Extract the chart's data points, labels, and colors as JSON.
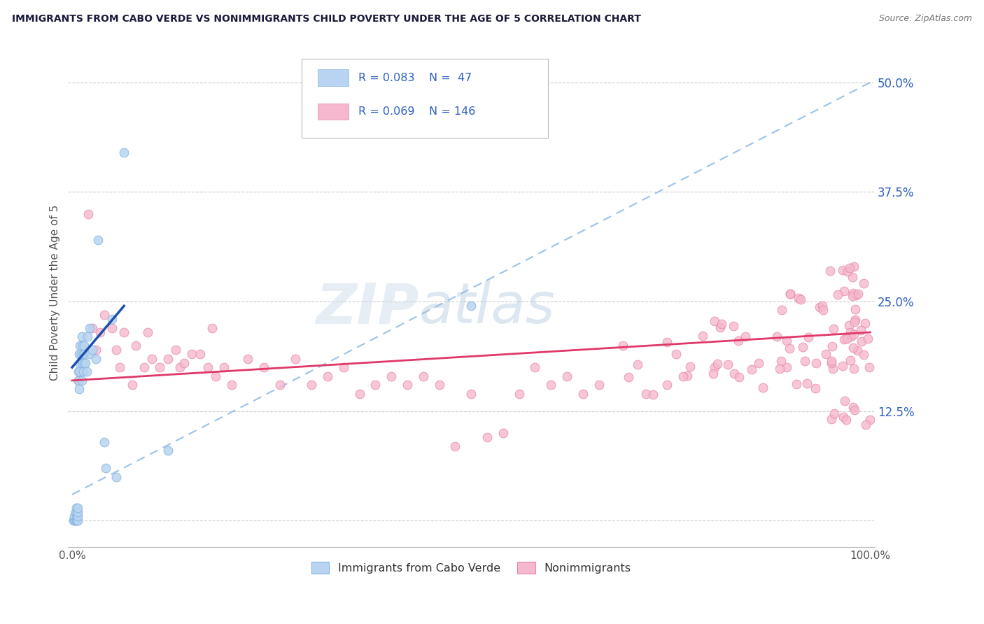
{
  "title": "IMMIGRANTS FROM CABO VERDE VS NONIMMIGRANTS CHILD POVERTY UNDER THE AGE OF 5 CORRELATION CHART",
  "source": "Source: ZipAtlas.com",
  "ylabel": "Child Poverty Under the Age of 5",
  "ytick_labels": [
    "",
    "12.5%",
    "25.0%",
    "37.5%",
    "50.0%"
  ],
  "ytick_values": [
    0.0,
    0.125,
    0.25,
    0.375,
    0.5
  ],
  "xlim": [
    -0.005,
    1.005
  ],
  "ylim": [
    -0.03,
    0.55
  ],
  "blue_R": 0.083,
  "blue_N": 47,
  "pink_R": 0.069,
  "pink_N": 146,
  "blue_fill": "#b8d4f0",
  "blue_edge": "#85b5e0",
  "pink_fill": "#f5b8ce",
  "pink_edge": "#e888a8",
  "blue_line": "#1a50b0",
  "pink_line": "#e03868",
  "dash_line": "#90bce8",
  "marker_size": 85,
  "legend_label_blue": "Immigrants from Cabo Verde",
  "legend_label_pink": "Nonimmigrants",
  "watermark_zip": "ZIP",
  "watermark_atlas": "atlas",
  "grid_color": "#cccccc",
  "title_color": "#1a1a3a",
  "axis_label_color": "#555555",
  "right_tick_color": "#3060c0",
  "blue_scatter_x": [
    0.002,
    0.003,
    0.003,
    0.004,
    0.004,
    0.005,
    0.005,
    0.005,
    0.006,
    0.006,
    0.006,
    0.007,
    0.007,
    0.007,
    0.007,
    0.008,
    0.008,
    0.009,
    0.009,
    0.01,
    0.01,
    0.01,
    0.011,
    0.012,
    0.012,
    0.013,
    0.013,
    0.014,
    0.014,
    0.015,
    0.015,
    0.016,
    0.017,
    0.018,
    0.019,
    0.022,
    0.023,
    0.025,
    0.03,
    0.032,
    0.04,
    0.042,
    0.05,
    0.055,
    0.065,
    0.12,
    0.5
  ],
  "blue_scatter_y": [
    0.0,
    0.0,
    0.005,
    0.0,
    0.01,
    0.0,
    0.005,
    0.015,
    0.0,
    0.005,
    0.01,
    0.0,
    0.005,
    0.01,
    0.015,
    0.16,
    0.17,
    0.15,
    0.19,
    0.17,
    0.18,
    0.2,
    0.19,
    0.16,
    0.21,
    0.18,
    0.2,
    0.17,
    0.19,
    0.18,
    0.2,
    0.19,
    0.18,
    0.17,
    0.21,
    0.22,
    0.19,
    0.195,
    0.185,
    0.32,
    0.09,
    0.06,
    0.23,
    0.05,
    0.42,
    0.08,
    0.245
  ],
  "blue_trend_x": [
    0.0,
    0.065
  ],
  "blue_trend_y": [
    0.175,
    0.245
  ],
  "dash_trend_x": [
    0.0,
    1.0
  ],
  "dash_trend_y": [
    0.03,
    0.5
  ],
  "pink_trend_x": [
    0.0,
    1.0
  ],
  "pink_trend_y": [
    0.16,
    0.215
  ]
}
